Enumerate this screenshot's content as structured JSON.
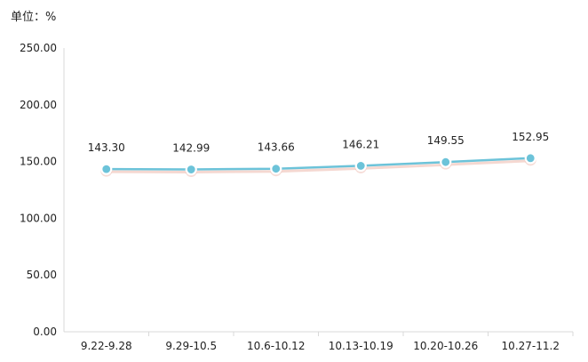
{
  "unit_label": "单位：%",
  "chart_data": {
    "type": "line",
    "categories": [
      "9.22-9.28",
      "9.29-10.5",
      "10.6-10.12",
      "10.13-10.19",
      "10.20-10.26",
      "10.27-11.2"
    ],
    "series": [
      {
        "values": [
          143.3,
          142.99,
          143.66,
          146.21,
          149.55,
          152.95
        ]
      }
    ],
    "data_labels": [
      "143.30",
      "142.99",
      "143.66",
      "146.21",
      "149.55",
      "152.95"
    ],
    "y_ticks": [
      "0.00",
      "50.00",
      "100.00",
      "150.00",
      "200.00",
      "250.00"
    ],
    "ylim": [
      0,
      250
    ],
    "grid": false,
    "line_color": "#6cc3d9",
    "marker_fill": "#6cc3d9",
    "marker_stroke": "#ffffff",
    "shadow_color": "#e8a89a",
    "axis_color": "#d9d9d9"
  }
}
